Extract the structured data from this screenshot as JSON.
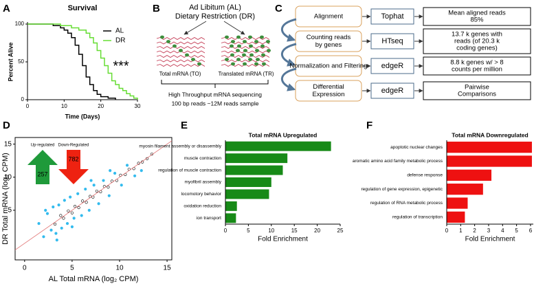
{
  "panel_labels": [
    "A",
    "B",
    "C",
    "D",
    "E",
    "F"
  ],
  "chart_data": [
    {
      "type": "line",
      "title": "Survival",
      "xlabel": "Time (Days)",
      "ylabel": "Percent Alive",
      "annotation": "***",
      "xlim": [
        0,
        30
      ],
      "xticks": [
        0,
        10,
        20,
        30
      ],
      "ylim": [
        0,
        100
      ],
      "yticks": [
        0,
        50,
        100
      ],
      "legend": "upper right",
      "series": [
        {
          "name": "AL",
          "color": "#000000",
          "x": [
            0,
            7,
            7,
            9,
            9,
            10,
            10,
            11,
            11,
            12,
            12,
            13,
            13,
            14,
            14,
            15,
            15,
            16,
            16,
            17,
            17,
            18,
            18,
            19,
            19,
            20,
            20,
            22,
            22,
            24,
            24
          ],
          "values": [
            100,
            100,
            98,
            98,
            95,
            95,
            92,
            92,
            88,
            88,
            82,
            82,
            72,
            72,
            60,
            60,
            45,
            45,
            30,
            30,
            20,
            20,
            12,
            12,
            7,
            7,
            4,
            4,
            2,
            2,
            0
          ]
        },
        {
          "name": "DR",
          "color": "#66dd33",
          "x": [
            0,
            9,
            9,
            12,
            12,
            14,
            14,
            16,
            16,
            17,
            17,
            18,
            18,
            19,
            19,
            20,
            20,
            21,
            21,
            22,
            22,
            23,
            23,
            24,
            24,
            25,
            25,
            26,
            26,
            27,
            27,
            28,
            28,
            29,
            29,
            30,
            30
          ],
          "values": [
            100,
            100,
            98,
            98,
            95,
            95,
            92,
            92,
            88,
            88,
            82,
            82,
            75,
            75,
            65,
            65,
            55,
            55,
            45,
            45,
            35,
            35,
            25,
            25,
            20,
            20,
            15,
            15,
            12,
            12,
            8,
            8,
            5,
            5,
            2,
            2,
            0
          ]
        }
      ]
    },
    {
      "type": "scatter",
      "xlabel": "AL Total mRNA (log₂ CPM)",
      "ylabel": "DR Total mRNA (log₂ CPM)",
      "xlim": [
        -1,
        15.5
      ],
      "xticks": [
        0,
        5,
        10,
        15
      ],
      "ylim": [
        -2.5,
        16
      ],
      "yticks": [
        5,
        10,
        15
      ],
      "up_label": "Up-regulated",
      "down_label": "Down-Regulated",
      "up_count": 257,
      "down_count": 782,
      "up_color": "#1f9a3a",
      "down_color": "#ee2211",
      "series": [
        {
          "color": "#33bbee",
          "x": [
            1.5,
            2.0,
            2.4,
            2.8,
            3.0,
            3.3,
            3.6,
            3.9,
            4.2,
            4.5,
            4.8,
            5.2,
            5.6,
            6.0,
            6.4,
            6.8,
            7.3,
            7.8,
            8.3,
            8.9,
            9.5,
            10.2,
            10.8,
            11.6,
            12.3,
            2.2,
            3.4,
            5.0,
            7.0,
            9.0
          ],
          "values": [
            3.0,
            1.0,
            4.5,
            2.0,
            5.5,
            1.5,
            5.8,
            2.3,
            6.5,
            3.0,
            7.0,
            3.8,
            7.5,
            4.2,
            8.2,
            5.0,
            8.8,
            6.0,
            9.5,
            7.2,
            10.6,
            8.8,
            11.8,
            10.2,
            11.0,
            5.0,
            0.5,
            2.5,
            9.5,
            11.0
          ]
        },
        {
          "color": "#000000",
          "x": [
            3.2,
            3.8,
            4.1,
            4.6,
            5.0,
            5.3,
            5.7,
            6.1,
            6.5,
            6.9,
            7.2,
            7.6,
            8.0,
            8.4,
            8.8,
            9.2,
            9.7,
            10.1,
            10.6,
            11.0,
            11.5,
            12.0,
            12.4,
            12.9,
            13.4
          ],
          "values": [
            2.9,
            4.2,
            3.8,
            4.9,
            4.6,
            5.6,
            5.4,
            6.4,
            6.2,
            7.1,
            7.0,
            7.9,
            7.8,
            8.6,
            8.5,
            9.4,
            9.5,
            10.3,
            10.4,
            11.2,
            11.3,
            12.1,
            12.3,
            12.8,
            13.5
          ]
        }
      ]
    },
    {
      "type": "hbar",
      "title": "Total mRNA Upregulated",
      "xlabel": "Fold Enrichment",
      "color": "#178a17",
      "categories": [
        "myosin filament assembly or disassembly",
        "muscle contraction",
        "regulation of muscle contraction",
        "myofibril assembly",
        "locomotory behavior",
        "oxidation reduction",
        "ion transport"
      ],
      "values": [
        23,
        13.5,
        12.5,
        10,
        9.5,
        2.5,
        2.3
      ],
      "xlim": [
        0,
        25
      ],
      "xticks": [
        0,
        5,
        10,
        15,
        20,
        25
      ]
    },
    {
      "type": "hbar",
      "title": "Total mRNA Downregulated",
      "xlabel": "Fold Enrichment",
      "color": "#ee1111",
      "categories": [
        "apoptotic nuclear changes",
        "aromatic amino acid family metabolic process",
        "defense response",
        "regulation of gene expression, epigenetic",
        "regulation of RNA metabolic process",
        "regulation of transcription"
      ],
      "values": [
        6.1,
        6.1,
        3.2,
        2.6,
        1.5,
        1.3
      ],
      "xlim": [
        0,
        6.2
      ],
      "xticks": [
        0,
        1,
        2,
        3,
        4,
        5,
        6
      ]
    }
  ],
  "diagram_b": {
    "title_lines": [
      "Ad Libitum (AL)",
      "Dietary Restriction (DR)"
    ],
    "left_label": "Total mRNA (TO)",
    "right_label": "Translated mRNA (TR)",
    "footer_lines": [
      "High Throughput mRNA sequencing",
      "100 bp reads ~12M reads sample"
    ]
  },
  "diagram_c": {
    "rows": [
      {
        "step": [
          "Alignment"
        ],
        "tool": "Tophat",
        "result": [
          "Mean aligned reads",
          "85%"
        ]
      },
      {
        "step": [
          "Counting reads",
          "by genes"
        ],
        "tool": "HTseq",
        "result": [
          "13.7 k genes with",
          "reads (of 20.3 k",
          "coding genes)"
        ]
      },
      {
        "step": [
          "Normalization and Filtering"
        ],
        "tool": "edgeR",
        "result": [
          "8.8 k genes w/ > 8",
          "counts per million"
        ]
      },
      {
        "step": [
          "Differential",
          "Expression"
        ],
        "tool": "edgeR",
        "result": [
          "Pairwise",
          "Comparisons"
        ]
      }
    ]
  }
}
